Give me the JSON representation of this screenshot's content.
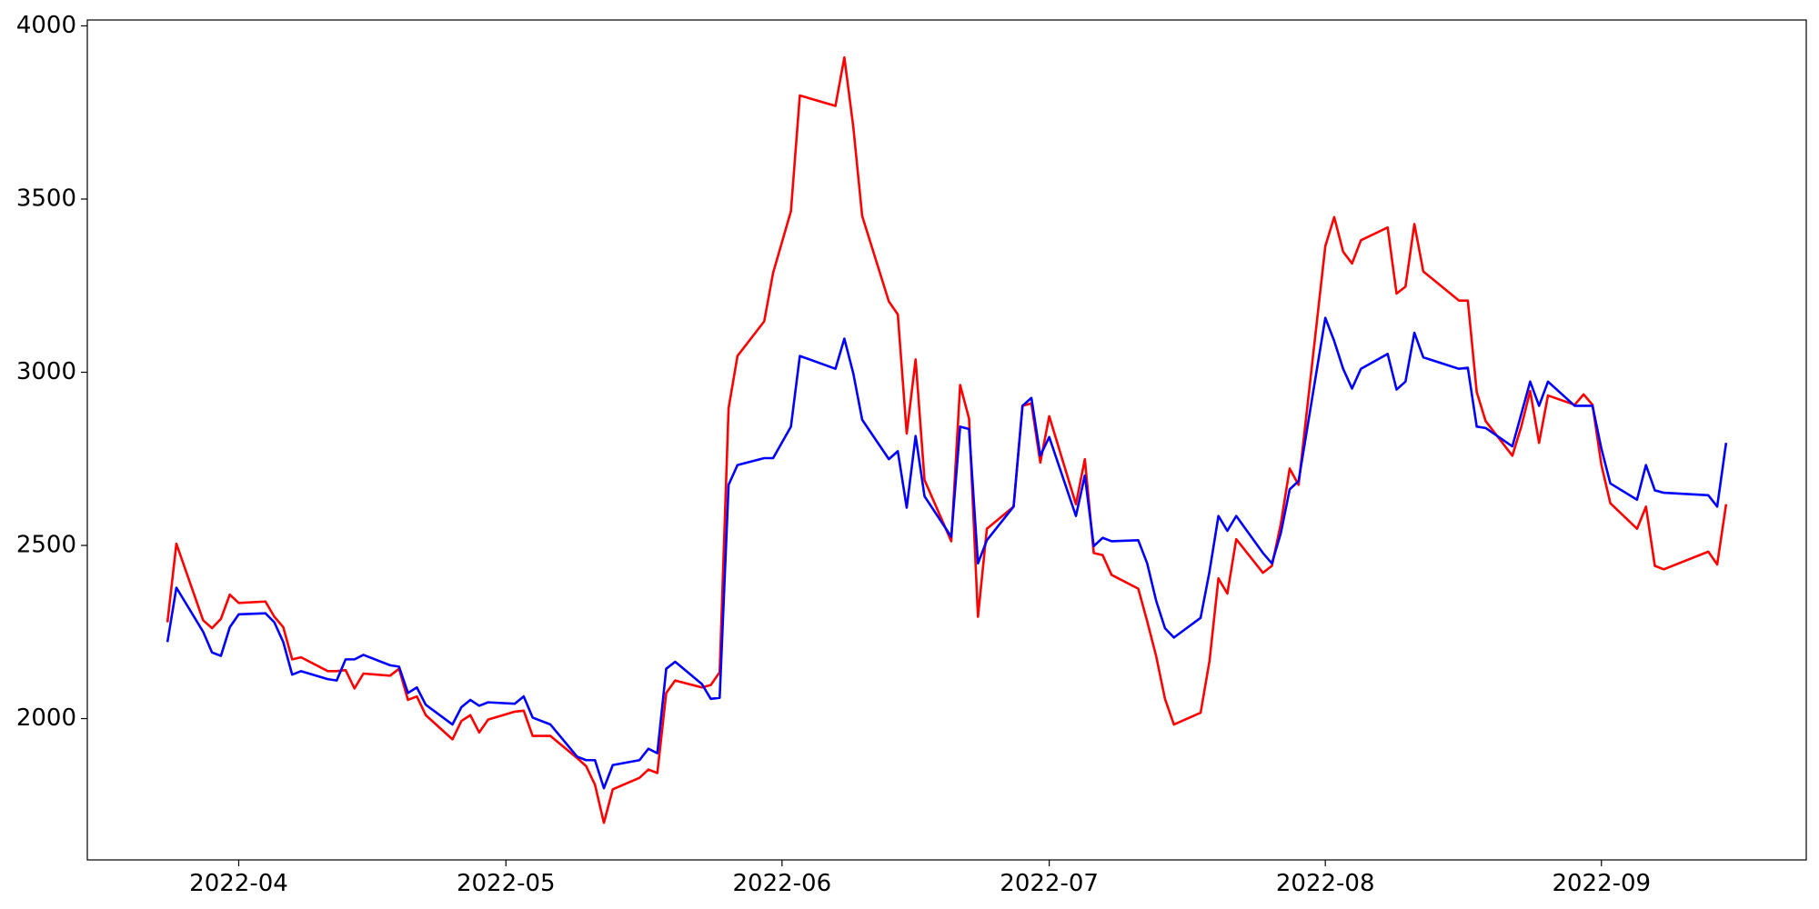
{
  "chart_data": {
    "type": "line",
    "x": [
      "2022-03-24",
      "2022-03-25",
      "2022-03-28",
      "2022-03-29",
      "2022-03-30",
      "2022-03-31",
      "2022-04-01",
      "2022-04-04",
      "2022-04-05",
      "2022-04-06",
      "2022-04-07",
      "2022-04-08",
      "2022-04-11",
      "2022-04-12",
      "2022-04-13",
      "2022-04-14",
      "2022-04-15",
      "2022-04-18",
      "2022-04-19",
      "2022-04-20",
      "2022-04-21",
      "2022-04-22",
      "2022-04-25",
      "2022-04-26",
      "2022-04-27",
      "2022-04-28",
      "2022-04-29",
      "2022-05-02",
      "2022-05-03",
      "2022-05-04",
      "2022-05-06",
      "2022-05-09",
      "2022-05-10",
      "2022-05-11",
      "2022-05-12",
      "2022-05-13",
      "2022-05-16",
      "2022-05-17",
      "2022-05-18",
      "2022-05-19",
      "2022-05-20",
      "2022-05-23",
      "2022-05-24",
      "2022-05-25",
      "2022-05-26",
      "2022-05-27",
      "2022-05-30",
      "2022-05-31",
      "2022-06-02",
      "2022-06-03",
      "2022-06-07",
      "2022-06-08",
      "2022-06-09",
      "2022-06-10",
      "2022-06-13",
      "2022-06-14",
      "2022-06-15",
      "2022-06-16",
      "2022-06-17",
      "2022-06-20",
      "2022-06-21",
      "2022-06-22",
      "2022-06-23",
      "2022-06-24",
      "2022-06-27",
      "2022-06-28",
      "2022-06-29",
      "2022-06-30",
      "2022-07-01",
      "2022-07-04",
      "2022-07-05",
      "2022-07-06",
      "2022-07-07",
      "2022-07-08",
      "2022-07-11",
      "2022-07-12",
      "2022-07-13",
      "2022-07-14",
      "2022-07-15",
      "2022-07-18",
      "2022-07-19",
      "2022-07-20",
      "2022-07-21",
      "2022-07-22",
      "2022-07-25",
      "2022-07-26",
      "2022-07-27",
      "2022-07-28",
      "2022-07-29",
      "2022-08-01",
      "2022-08-02",
      "2022-08-03",
      "2022-08-04",
      "2022-08-05",
      "2022-08-08",
      "2022-08-09",
      "2022-08-10",
      "2022-08-11",
      "2022-08-12",
      "2022-08-16",
      "2022-08-17",
      "2022-08-18",
      "2022-08-19",
      "2022-08-22",
      "2022-08-23",
      "2022-08-24",
      "2022-08-25",
      "2022-08-26",
      "2022-08-29",
      "2022-08-30",
      "2022-08-31",
      "2022-09-01",
      "2022-09-02",
      "2022-09-05",
      "2022-09-06",
      "2022-09-07",
      "2022-09-08",
      "2022-09-13",
      "2022-09-14",
      "2022-09-15"
    ],
    "series": [
      {
        "color": "red",
        "values": [
          2278,
          2505,
          2284,
          2261,
          2288,
          2358,
          2334,
          2338,
          2294,
          2264,
          2171,
          2177,
          2137,
          2137,
          2140,
          2087,
          2130,
          2124,
          2144,
          2054,
          2064,
          2010,
          1940,
          1993,
          2010,
          1960,
          1997,
          2020,
          2023,
          1950,
          1950,
          1886,
          1863,
          1809,
          1699,
          1796,
          1829,
          1853,
          1843,
          2074,
          2110,
          2090,
          2097,
          2134,
          2896,
          3047,
          3147,
          3287,
          3465,
          3799,
          3769,
          3909,
          3709,
          3451,
          3204,
          3167,
          2823,
          3037,
          2689,
          2512,
          2963,
          2866,
          2294,
          2548,
          2612,
          2903,
          2910,
          2739,
          2873,
          2619,
          2749,
          2478,
          2472,
          2415,
          2375,
          2281,
          2181,
          2057,
          1983,
          2017,
          2167,
          2405,
          2361,
          2518,
          2421,
          2441,
          2562,
          2722,
          2675,
          3364,
          3448,
          3348,
          3314,
          3381,
          3418,
          3227,
          3247,
          3428,
          3291,
          3207,
          3207,
          2943,
          2859,
          2759,
          2843,
          2946,
          2796,
          2933,
          2906,
          2936,
          2906,
          2732,
          2622,
          2548,
          2612,
          2441,
          2431,
          2482,
          2445,
          2619
        ]
      },
      {
        "color": "blue",
        "values": [
          2221,
          2378,
          2251,
          2191,
          2181,
          2264,
          2301,
          2304,
          2278,
          2221,
          2127,
          2137,
          2114,
          2110,
          2171,
          2171,
          2184,
          2154,
          2150,
          2074,
          2090,
          2040,
          1983,
          2033,
          2054,
          2037,
          2047,
          2043,
          2064,
          2003,
          1983,
          1890,
          1880,
          1880,
          1799,
          1866,
          1880,
          1913,
          1900,
          2144,
          2164,
          2100,
          2057,
          2060,
          2675,
          2732,
          2752,
          2752,
          2843,
          3047,
          3010,
          3097,
          2997,
          2863,
          2749,
          2772,
          2609,
          2816,
          2642,
          2525,
          2843,
          2836,
          2448,
          2515,
          2612,
          2903,
          2926,
          2759,
          2813,
          2585,
          2702,
          2498,
          2522,
          2512,
          2515,
          2448,
          2341,
          2261,
          2234,
          2291,
          2425,
          2585,
          2542,
          2585,
          2478,
          2448,
          2535,
          2662,
          2686,
          3157,
          3090,
          3010,
          2953,
          3010,
          3053,
          2950,
          2973,
          3114,
          3043,
          3010,
          3013,
          2843,
          2839,
          2786,
          2879,
          2973,
          2903,
          2973,
          2903,
          2903,
          2903,
          2779,
          2679,
          2632,
          2732,
          2659,
          2652,
          2645,
          2612,
          2796
        ]
      }
    ],
    "xlim": [
      "2022-03-15",
      "2022-09-24"
    ],
    "xticks": [
      {
        "value": "2022-04-01",
        "label": "2022-04"
      },
      {
        "value": "2022-05-01",
        "label": "2022-05"
      },
      {
        "value": "2022-06-01",
        "label": "2022-06"
      },
      {
        "value": "2022-07-01",
        "label": "2022-07"
      },
      {
        "value": "2022-08-01",
        "label": "2022-08"
      },
      {
        "value": "2022-09-01",
        "label": "2022-09"
      }
    ],
    "ylim": [
      1592,
      4017
    ],
    "yticks": [
      2000,
      2500,
      3000,
      3500,
      4000
    ],
    "grid": false
  }
}
